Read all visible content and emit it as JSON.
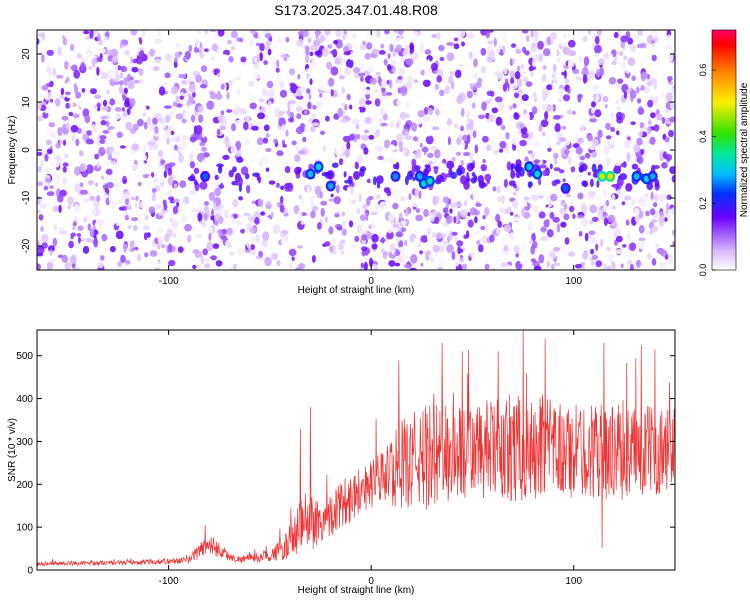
{
  "title": "S173.2025.347.01.48.R08",
  "chart_data": [
    {
      "type": "heatmap",
      "title": "S173.2025.347.01.48.R08",
      "xlabel": "Height of straight line (km)",
      "ylabel": "Frequency (Hz)",
      "xlim": [
        -165,
        150
      ],
      "ylim": [
        -25,
        25
      ],
      "xticks": [
        -100,
        0,
        100
      ],
      "yticks": [
        -20,
        -10,
        0,
        10,
        20
      ],
      "colorbar": {
        "label": "Normalized spectral amplitude",
        "range": [
          0.0,
          0.72
        ],
        "ticks": [
          0.0,
          0.2,
          0.4,
          0.6
        ],
        "tick_labels": [
          "0.0",
          "0.2",
          "0.4",
          "0.6"
        ]
      },
      "signal_band": {
        "frequency_center": -5.5,
        "frequency_halfwidth": 2.5,
        "x_start": -90,
        "x_end": 150
      },
      "hotspots": [
        {
          "x": -82,
          "y": -5.5,
          "v": 0.25
        },
        {
          "x": -30,
          "y": -5,
          "v": 0.3
        },
        {
          "x": -26,
          "y": -3.5,
          "v": 0.32
        },
        {
          "x": -20,
          "y": -7.5,
          "v": 0.28
        },
        {
          "x": 12,
          "y": -5.5,
          "v": 0.27
        },
        {
          "x": 24,
          "y": -5.5,
          "v": 0.28
        },
        {
          "x": 26,
          "y": -7,
          "v": 0.32
        },
        {
          "x": 29,
          "y": -6.5,
          "v": 0.34
        },
        {
          "x": 78,
          "y": -3.5,
          "v": 0.3
        },
        {
          "x": 82,
          "y": -5,
          "v": 0.33
        },
        {
          "x": 96,
          "y": -8,
          "v": 0.25
        },
        {
          "x": 114,
          "y": -5.5,
          "v": 0.48
        },
        {
          "x": 118,
          "y": -5.5,
          "v": 0.52
        },
        {
          "x": 131,
          "y": -5.5,
          "v": 0.3
        },
        {
          "x": 136,
          "y": -6,
          "v": 0.33
        },
        {
          "x": 139,
          "y": -5.5,
          "v": 0.28
        }
      ]
    },
    {
      "type": "line",
      "xlabel": "Height of straight line (km)",
      "ylabel": "SNR (10 * v/v)",
      "xlim": [
        -165,
        150
      ],
      "ylim": [
        0,
        560
      ],
      "xticks": [
        -100,
        0,
        100
      ],
      "yticks": [
        0,
        100,
        200,
        300,
        400,
        500
      ],
      "series": [
        {
          "name": "SNR",
          "color": "#ee3333",
          "x": [
            -165,
            -140,
            -120,
            -100,
            -90,
            -85,
            -80,
            -75,
            -70,
            -65,
            -60,
            -55,
            -50,
            -45,
            -40,
            -35,
            -30,
            -25,
            -20,
            -15,
            -10,
            -5,
            0,
            5,
            10,
            15,
            20,
            25,
            30,
            40,
            50,
            60,
            70,
            80,
            90,
            100,
            110,
            120,
            130,
            140,
            150
          ],
          "base": [
            15,
            16,
            17,
            20,
            24,
            45,
            60,
            48,
            30,
            25,
            28,
            30,
            35,
            45,
            65,
            100,
            120,
            110,
            130,
            150,
            170,
            190,
            200,
            215,
            230,
            245,
            255,
            260,
            265,
            270,
            275,
            280,
            280,
            275,
            280,
            275,
            280,
            275,
            275,
            280,
            280
          ],
          "amp": [
            6,
            6,
            7,
            8,
            10,
            25,
            30,
            25,
            12,
            10,
            12,
            15,
            18,
            30,
            50,
            80,
            100,
            60,
            65,
            70,
            75,
            70,
            70,
            80,
            100,
            130,
            140,
            150,
            160,
            150,
            140,
            150,
            150,
            150,
            150,
            140,
            140,
            140,
            140,
            130,
            130
          ],
          "peaks": [
            {
              "x": -82,
              "y": 105
            },
            {
              "x": -35,
              "y": 330
            },
            {
              "x": -30,
              "y": 380
            },
            {
              "x": 35,
              "y": 530
            },
            {
              "x": 45,
              "y": 510
            },
            {
              "x": 75,
              "y": 560
            },
            {
              "x": 115,
              "y": 530
            },
            {
              "x": 140,
              "y": 515
            },
            {
              "x": 114,
              "y": 50
            }
          ]
        }
      ]
    }
  ]
}
